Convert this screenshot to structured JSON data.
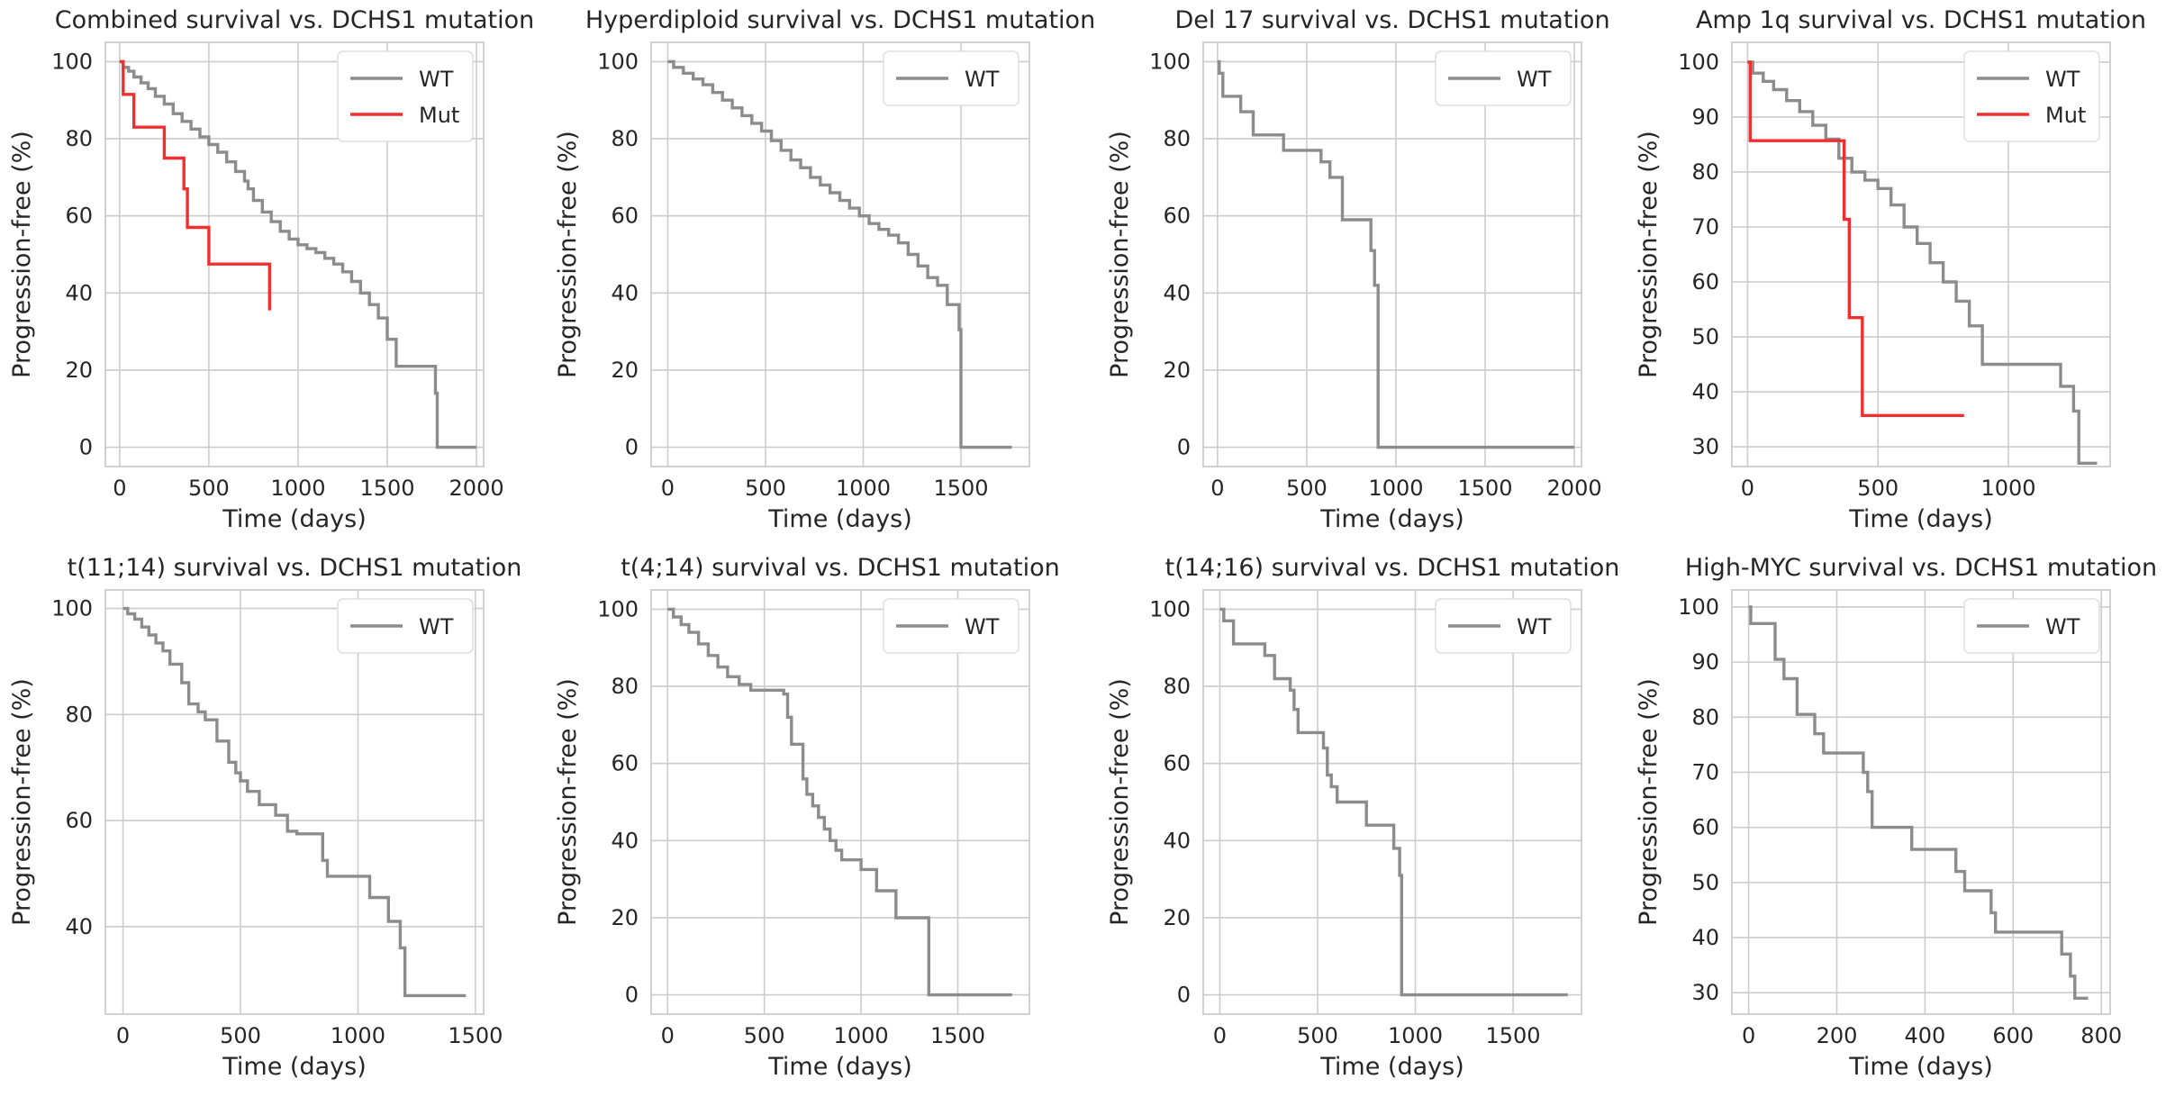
{
  "chart_data": [
    {
      "type": "line",
      "title": "Combined survival vs. DCHS1 mutation",
      "xlabel": "Time (days)",
      "ylabel": "Progression-free (%)",
      "xlim": [
        -80,
        2040
      ],
      "ylim": [
        -5,
        105
      ],
      "xticks": [
        0,
        500,
        1000,
        1500,
        2000
      ],
      "yticks": [
        0,
        20,
        40,
        60,
        80,
        100
      ],
      "grid": true,
      "legend_position": "top-right",
      "series": [
        {
          "name": "WT",
          "color": "#8c8c8c",
          "step": true,
          "x": [
            0,
            20,
            50,
            80,
            120,
            160,
            200,
            250,
            300,
            350,
            400,
            450,
            500,
            550,
            600,
            650,
            700,
            720,
            750,
            800,
            850,
            900,
            950,
            1000,
            1050,
            1100,
            1150,
            1200,
            1250,
            1300,
            1350,
            1400,
            1450,
            1500,
            1550,
            1600,
            1700,
            1750,
            1770,
            1780,
            1800,
            2000
          ],
          "y": [
            100,
            98.5,
            97.5,
            96,
            94.5,
            93,
            91,
            89,
            86.5,
            84.5,
            82.5,
            80.5,
            78.5,
            76.5,
            74,
            71.5,
            69,
            67,
            64,
            61,
            58.5,
            56,
            54,
            52.5,
            51.5,
            50.5,
            49,
            47.5,
            45.5,
            43,
            40,
            37,
            33.5,
            28,
            21,
            21,
            21,
            21,
            14,
            0,
            0,
            0
          ]
        },
        {
          "name": "Mut",
          "color": "#f03030",
          "step": true,
          "x": [
            0,
            20,
            80,
            250,
            360,
            380,
            420,
            500,
            840
          ],
          "y": [
            100,
            91.5,
            83,
            75,
            67,
            57,
            57,
            47.5,
            35.5
          ]
        }
      ]
    },
    {
      "type": "line",
      "title": "Hyperdiploid survival vs. DCHS1 mutation",
      "xlabel": "Time (days)",
      "ylabel": "Progression-free (%)",
      "xlim": [
        -85,
        1850
      ],
      "ylim": [
        -5,
        105
      ],
      "xticks": [
        0,
        500,
        1000,
        1500
      ],
      "yticks": [
        0,
        20,
        40,
        60,
        80,
        100
      ],
      "grid": true,
      "legend_position": "top-right",
      "series": [
        {
          "name": "WT",
          "color": "#8c8c8c",
          "step": true,
          "x": [
            0,
            30,
            80,
            130,
            180,
            230,
            280,
            330,
            380,
            430,
            480,
            530,
            580,
            630,
            680,
            730,
            780,
            830,
            880,
            930,
            980,
            1030,
            1080,
            1130,
            1180,
            1230,
            1280,
            1330,
            1380,
            1430,
            1490,
            1500,
            1760
          ],
          "y": [
            100,
            98.5,
            97,
            95.5,
            94,
            92,
            90,
            88,
            86,
            84,
            82,
            79.5,
            77,
            74.5,
            72.5,
            70,
            68,
            66,
            64,
            62,
            60,
            58,
            56.5,
            55,
            53,
            50,
            47,
            44,
            42,
            37,
            30.5,
            0,
            0
          ]
        }
      ]
    },
    {
      "type": "line",
      "title": "Del 17 survival vs. DCHS1 mutation",
      "xlabel": "Time (days)",
      "ylabel": "Progression-free (%)",
      "xlim": [
        -80,
        2040
      ],
      "ylim": [
        -5,
        105
      ],
      "xticks": [
        0,
        500,
        1000,
        1500,
        2000
      ],
      "yticks": [
        0,
        20,
        40,
        60,
        80,
        100
      ],
      "grid": true,
      "legend_position": "top-right",
      "series": [
        {
          "name": "WT",
          "color": "#8c8c8c",
          "step": true,
          "x": [
            0,
            10,
            30,
            130,
            200,
            370,
            580,
            630,
            700,
            860,
            880,
            900,
            910,
            2000
          ],
          "y": [
            100,
            97,
            91,
            87,
            81,
            77,
            74,
            70,
            59,
            51,
            42,
            0,
            0,
            0
          ]
        }
      ]
    },
    {
      "type": "line",
      "title": "Amp 1q survival vs. DCHS1 mutation",
      "xlabel": "Time (days)",
      "ylabel": "Progression-free (%)",
      "xlim": [
        -60,
        1390
      ],
      "ylim": [
        26.4,
        103.6
      ],
      "xticks": [
        0,
        500,
        1000
      ],
      "yticks": [
        30,
        40,
        50,
        60,
        70,
        80,
        90,
        100
      ],
      "grid": true,
      "legend_position": "top-right",
      "series": [
        {
          "name": "WT",
          "color": "#8c8c8c",
          "step": true,
          "x": [
            0,
            20,
            60,
            100,
            150,
            200,
            250,
            300,
            350,
            400,
            450,
            500,
            550,
            600,
            650,
            700,
            750,
            800,
            850,
            900,
            1000,
            1100,
            1200,
            1250,
            1270,
            1340
          ],
          "y": [
            100,
            98,
            96.5,
            95,
            93,
            91,
            88.5,
            86,
            82.5,
            80,
            78.5,
            77,
            74,
            70,
            67,
            63.5,
            60,
            56.5,
            52,
            45,
            45,
            45,
            41,
            36.5,
            27,
            27
          ]
        },
        {
          "name": "Mut",
          "color": "#f03030",
          "step": true,
          "x": [
            0,
            10,
            370,
            390,
            440,
            830
          ],
          "y": [
            100,
            85.7,
            71.4,
            53.5,
            35.7,
            35.7
          ]
        }
      ]
    },
    {
      "type": "line",
      "title": "t(11;14) survival vs. DCHS1 mutation",
      "xlabel": "Time (days)",
      "ylabel": "Progression-free (%)",
      "xlim": [
        -75,
        1535
      ],
      "ylim": [
        23.5,
        103.5
      ],
      "xticks": [
        0,
        500,
        1000,
        1500
      ],
      "yticks": [
        40,
        60,
        80,
        100
      ],
      "grid": true,
      "legend_position": "top-right",
      "series": [
        {
          "name": "WT",
          "color": "#8c8c8c",
          "step": true,
          "x": [
            0,
            20,
            50,
            80,
            110,
            140,
            170,
            200,
            250,
            280,
            320,
            350,
            400,
            450,
            480,
            500,
            530,
            580,
            650,
            700,
            740,
            850,
            870,
            1050,
            1130,
            1180,
            1200,
            1460
          ],
          "y": [
            100,
            99,
            98,
            96.5,
            95,
            93.5,
            92,
            89.5,
            86,
            82,
            80.5,
            79,
            75,
            71,
            69,
            67.5,
            65.5,
            63,
            61,
            58,
            57.5,
            52.5,
            49.5,
            45.5,
            41,
            36,
            27,
            27
          ]
        }
      ]
    },
    {
      "type": "line",
      "title": "t(4;14) survival vs. DCHS1 mutation",
      "xlabel": "Time (days)",
      "ylabel": "Progression-free (%)",
      "xlim": [
        -85,
        1870
      ],
      "ylim": [
        -5,
        105
      ],
      "xticks": [
        0,
        500,
        1000,
        1500
      ],
      "yticks": [
        0,
        20,
        40,
        60,
        80,
        100
      ],
      "grid": true,
      "legend_position": "top-right",
      "series": [
        {
          "name": "WT",
          "color": "#8c8c8c",
          "step": true,
          "x": [
            0,
            30,
            70,
            110,
            160,
            210,
            260,
            310,
            370,
            430,
            600,
            620,
            640,
            700,
            720,
            750,
            780,
            810,
            840,
            870,
            900,
            1000,
            1080,
            1180,
            1350,
            1780
          ],
          "y": [
            100,
            98,
            96,
            94,
            91,
            88,
            85,
            82.5,
            80.5,
            79,
            78,
            72,
            65,
            56,
            52,
            49,
            46,
            43,
            40,
            37.5,
            35,
            32.5,
            27,
            20,
            0,
            0
          ]
        }
      ]
    },
    {
      "type": "line",
      "title": "t(14;16) survival vs. DCHS1 mutation",
      "xlabel": "Time (days)",
      "ylabel": "Progression-free (%)",
      "xlim": [
        -85,
        1850
      ],
      "ylim": [
        -5,
        105
      ],
      "xticks": [
        0,
        500,
        1000,
        1500
      ],
      "yticks": [
        0,
        20,
        40,
        60,
        80,
        100
      ],
      "grid": true,
      "legend_position": "top-right",
      "series": [
        {
          "name": "WT",
          "color": "#8c8c8c",
          "step": true,
          "x": [
            0,
            20,
            70,
            230,
            280,
            360,
            380,
            400,
            530,
            550,
            570,
            600,
            750,
            890,
            920,
            930,
            1780
          ],
          "y": [
            100,
            97,
            91,
            88,
            82,
            79,
            74,
            68,
            64,
            57,
            54,
            50,
            44,
            38,
            31,
            0,
            0
          ]
        }
      ]
    },
    {
      "type": "line",
      "title": "High-MYC survival vs. DCHS1 mutation",
      "xlabel": "Time (days)",
      "ylabel": "Progression-free (%)",
      "xlim": [
        -38,
        820
      ],
      "ylim": [
        26.1,
        103.1
      ],
      "xticks": [
        0,
        200,
        400,
        600,
        800
      ],
      "yticks": [
        30,
        40,
        50,
        60,
        70,
        80,
        90,
        100
      ],
      "grid": true,
      "legend_position": "top-right",
      "series": [
        {
          "name": "WT",
          "color": "#8c8c8c",
          "step": true,
          "x": [
            0,
            5,
            60,
            80,
            110,
            150,
            170,
            260,
            270,
            280,
            370,
            470,
            490,
            550,
            560,
            710,
            730,
            740,
            770
          ],
          "y": [
            100,
            97,
            90.5,
            87,
            80.5,
            77,
            73.5,
            70,
            66.5,
            60,
            56,
            52,
            48.5,
            44.5,
            41,
            37,
            33,
            29,
            29
          ]
        }
      ]
    }
  ]
}
